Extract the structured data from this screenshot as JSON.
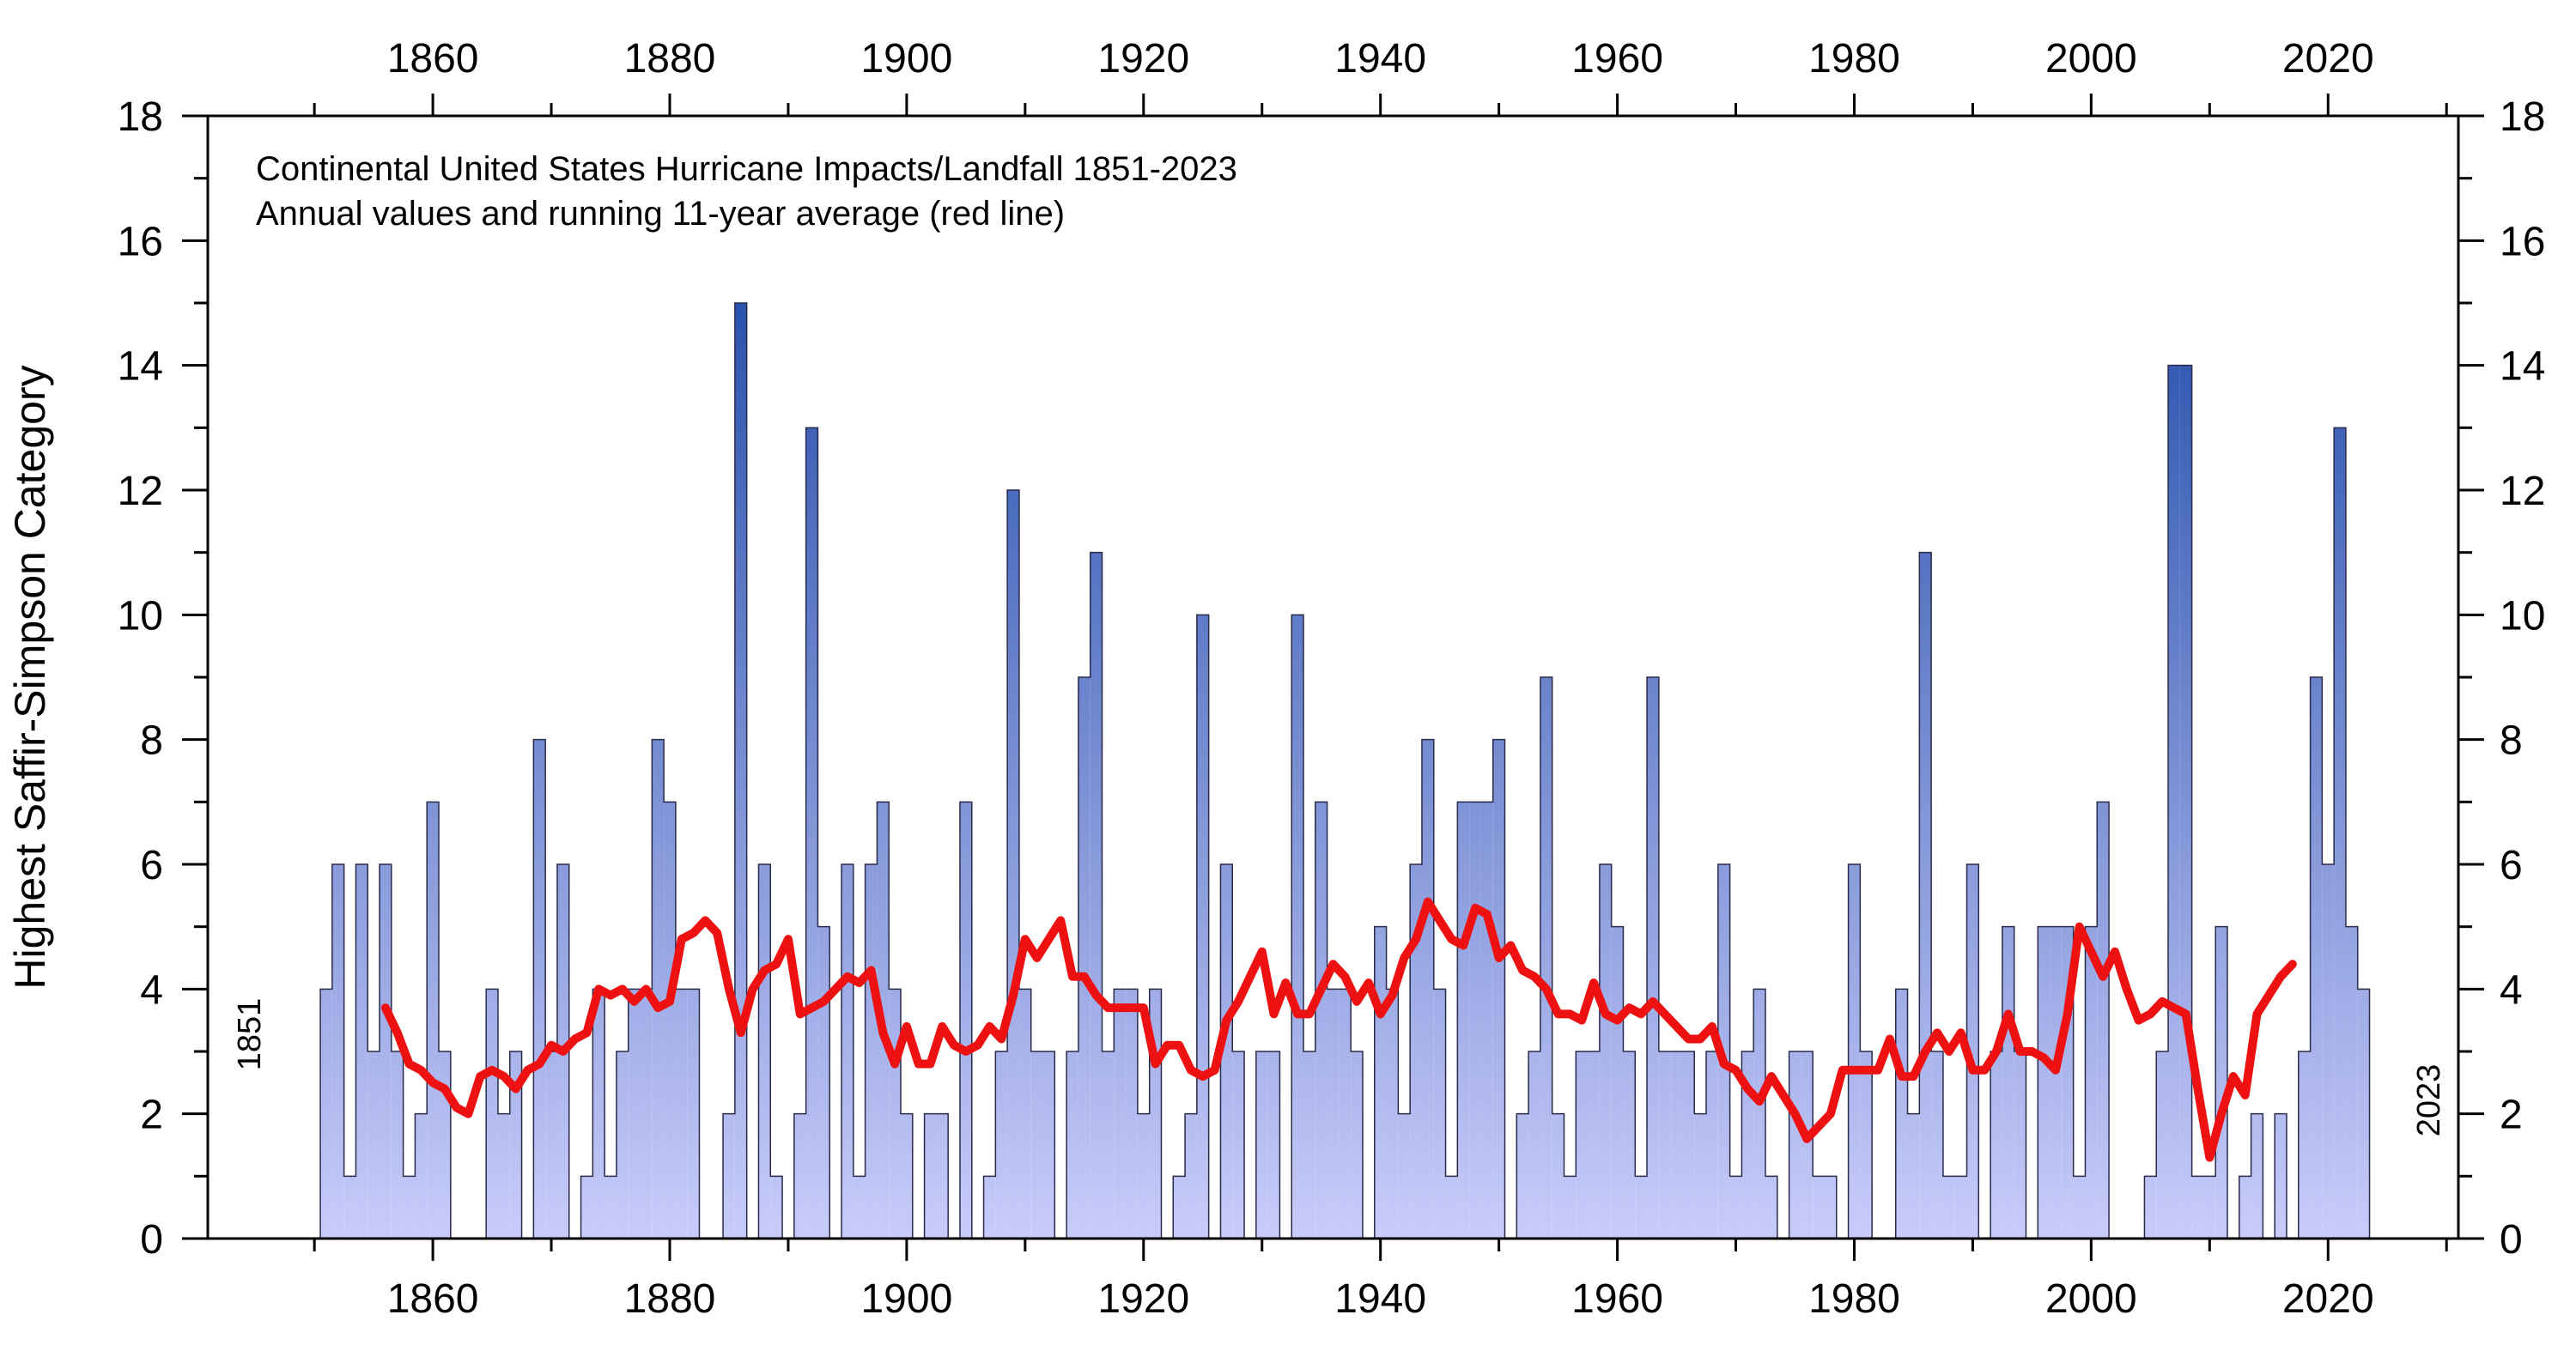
{
  "chart_data": {
    "type": "bar",
    "title": "Continental United States Hurricane Impacts/Landfall 1851-2023",
    "subtitle": "Annual values and running 11-year average (red line)",
    "ylabel": "Highest Saffir-Simpson Category",
    "xlabel": "",
    "xlim": [
      1841,
      2031
    ],
    "ylim": [
      0,
      18
    ],
    "x_ticks": [
      1860,
      1880,
      1900,
      1920,
      1940,
      1960,
      1980,
      2000,
      2020
    ],
    "y_ticks": [
      0,
      2,
      4,
      6,
      8,
      10,
      12,
      14,
      16,
      18
    ],
    "start_year_label": "1851",
    "end_year_label": "2023",
    "colors": {
      "bar_top": "#0b3a9e",
      "bar_bottom": "#c8ccfa",
      "bar_outline": "#2a2a4a",
      "running_mean": "#ee1111",
      "axis": "#000000"
    },
    "series": [
      {
        "name": "Annual highest category",
        "start_year": 1851,
        "values": [
          4,
          6,
          1,
          6,
          3,
          6,
          3,
          1,
          2,
          7,
          3,
          0,
          0,
          0,
          4,
          2,
          3,
          0,
          8,
          3,
          6,
          0,
          1,
          4,
          1,
          3,
          4,
          4,
          8,
          7,
          4,
          4,
          0,
          0,
          2,
          15,
          0,
          6,
          1,
          0,
          2,
          13,
          5,
          0,
          6,
          1,
          6,
          7,
          4,
          2,
          0,
          2,
          2,
          0,
          7,
          0,
          1,
          3,
          12,
          4,
          3,
          3,
          0,
          3,
          9,
          11,
          3,
          4,
          4,
          2,
          4,
          0,
          1,
          2,
          10,
          0,
          6,
          3,
          0,
          3,
          3,
          0,
          10,
          3,
          7,
          4,
          4,
          3,
          0,
          5,
          4,
          2,
          6,
          8,
          4,
          1,
          7,
          7,
          7,
          8,
          0,
          2,
          3,
          9,
          2,
          1,
          3,
          3,
          6,
          5,
          3,
          1,
          9,
          3,
          3,
          3,
          2,
          3,
          6,
          1,
          3,
          4,
          1,
          0,
          3,
          3,
          1,
          1,
          0,
          6,
          3,
          0,
          0,
          4,
          2,
          11,
          3,
          1,
          1,
          6,
          0,
          3,
          5,
          3,
          0,
          5,
          5,
          5,
          1,
          5,
          7,
          0,
          0,
          0,
          1,
          3,
          14,
          14,
          1,
          1,
          5,
          0,
          1,
          2,
          0,
          2,
          0,
          3,
          9,
          6,
          13,
          5,
          4
        ]
      },
      {
        "name": "Running 11-year average",
        "start_year": 1856,
        "values": [
          3.7,
          3.3,
          2.8,
          2.7,
          2.5,
          2.4,
          2.1,
          2.0,
          2.6,
          2.7,
          2.6,
          2.4,
          2.7,
          2.8,
          3.1,
          3.0,
          3.2,
          3.3,
          4.0,
          3.9,
          4.0,
          3.8,
          4.0,
          3.7,
          3.8,
          4.8,
          4.9,
          5.1,
          4.9,
          4.0,
          3.3,
          4.0,
          4.3,
          4.4,
          4.8,
          3.6,
          3.7,
          3.8,
          4.0,
          4.2,
          4.1,
          4.3,
          3.3,
          2.8,
          3.4,
          2.8,
          2.8,
          3.4,
          3.1,
          3.0,
          3.1,
          3.4,
          3.2,
          3.9,
          4.8,
          4.5,
          4.8,
          5.1,
          4.2,
          4.2,
          3.9,
          3.7,
          3.7,
          3.7,
          3.7,
          2.8,
          3.1,
          3.1,
          2.7,
          2.6,
          2.7,
          3.5,
          3.8,
          4.2,
          4.6,
          3.6,
          4.1,
          3.6,
          3.6,
          4.0,
          4.4,
          4.2,
          3.8,
          4.1,
          3.6,
          3.9,
          4.5,
          4.8,
          5.4,
          5.1,
          4.8,
          4.7,
          5.3,
          5.2,
          4.5,
          4.7,
          4.3,
          4.2,
          4.0,
          3.6,
          3.6,
          3.5,
          4.1,
          3.6,
          3.5,
          3.7,
          3.6,
          3.8,
          3.6,
          3.4,
          3.2,
          3.2,
          3.4,
          2.8,
          2.7,
          2.4,
          2.2,
          2.6,
          2.3,
          2.0,
          1.6,
          1.8,
          2.0,
          2.7,
          2.7,
          2.7,
          2.7,
          3.2,
          2.6,
          2.6,
          3.0,
          3.3,
          3.0,
          3.3,
          2.7,
          2.7,
          3.0,
          3.6,
          3.0,
          3.0,
          2.9,
          2.7,
          3.6,
          5.0,
          4.6,
          4.2,
          4.6,
          4.0,
          3.5,
          3.6,
          3.8,
          3.7,
          3.6,
          2.4,
          1.3,
          2.0,
          2.6,
          2.3,
          3.6,
          3.9,
          4.2,
          4.4
        ]
      }
    ]
  }
}
